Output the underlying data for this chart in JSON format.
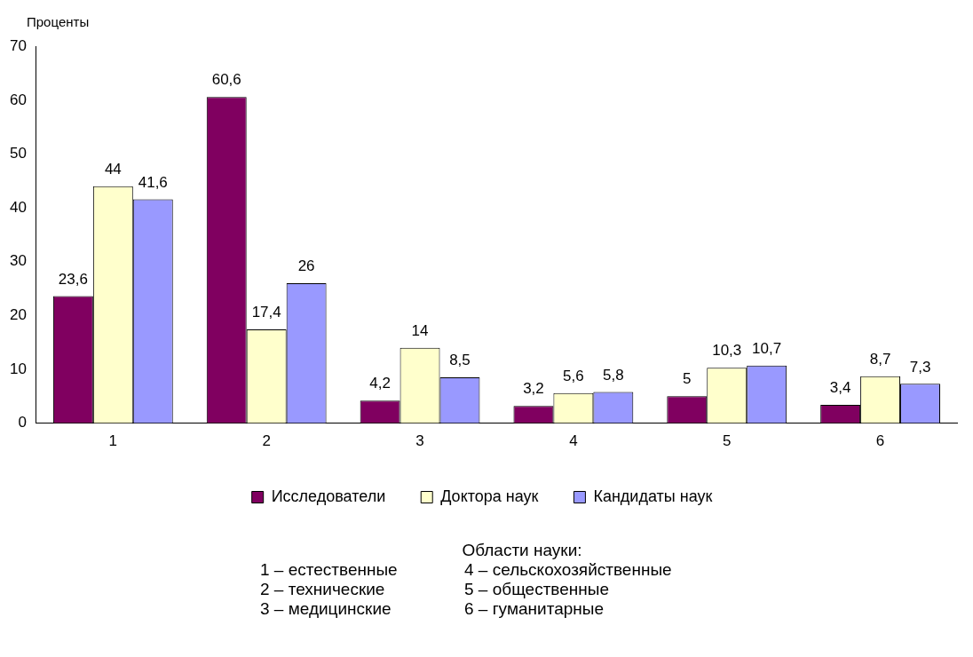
{
  "chart_data": {
    "type": "bar",
    "ylabel": "Проценты",
    "categories": [
      "1",
      "2",
      "3",
      "4",
      "5",
      "6"
    ],
    "series": [
      {
        "name": "Исследователи",
        "color": "#800060",
        "values": [
          23.6,
          60.6,
          4.2,
          3.2,
          5,
          3.4
        ],
        "value_labels": [
          "23,6",
          "60,6",
          "4,2",
          "3,2",
          "5",
          "3,4"
        ]
      },
      {
        "name": "Доктора наук",
        "color": "#ffffcc",
        "values": [
          44,
          17.4,
          14,
          5.6,
          10.3,
          8.7
        ],
        "value_labels": [
          "44",
          "17,4",
          "14",
          "5,6",
          "10,3",
          "8,7"
        ]
      },
      {
        "name": "Кандидаты наук",
        "color": "#9999ff",
        "values": [
          41.6,
          26,
          8.5,
          5.8,
          10.7,
          7.3
        ],
        "value_labels": [
          "41,6",
          "26",
          "8,5",
          "5,8",
          "10,7",
          "7,3"
        ]
      }
    ],
    "ylim": [
      0,
      70
    ],
    "yticks": [
      0,
      10,
      20,
      30,
      40,
      50,
      60,
      70
    ],
    "legend": "bottom",
    "annotations": [
      "Области науки:",
      "1 – естественные",
      "4 – сельскохозяйственные",
      "2 – технические",
      "5 – общественные",
      "3 – медицинские",
      "6 – гуманитарные"
    ]
  }
}
